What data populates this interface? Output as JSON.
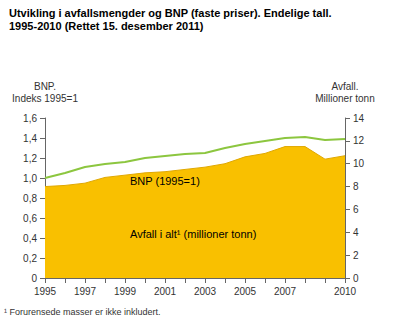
{
  "chart_data": {
    "type": "line",
    "title": "Utvikling i avfallsmengder og BNP (faste priser). Endelige tall.",
    "subtitle": "1995-2010 (Rettet 15. desember 2011)",
    "y_label": "BNP.\nIndeks 1995=1",
    "y2_label": "Avfall.\nMillioner tonn",
    "footnote": "¹ Forurensede masser er ikke inkludert.",
    "categories": [
      "1995",
      null,
      "1997",
      null,
      "1999",
      null,
      "2001",
      null,
      "2003",
      null,
      "2005",
      null,
      "2007",
      null,
      null,
      "2010"
    ],
    "series": [
      {
        "name": "Avfall i alt¹ (millioner tonn)",
        "type": "area",
        "axis": "y2",
        "color": "#f9c000",
        "values": [
          8.0,
          8.1,
          8.3,
          8.8,
          9.0,
          9.2,
          9.3,
          9.5,
          9.7,
          10.0,
          10.6,
          10.9,
          11.5,
          11.5,
          10.4,
          10.7
        ]
      },
      {
        "name": "BNP (1995=1)",
        "type": "line",
        "color": "#8cc63f",
        "values": [
          1.0,
          1.05,
          1.11,
          1.14,
          1.16,
          1.2,
          1.22,
          1.24,
          1.25,
          1.3,
          1.34,
          1.37,
          1.4,
          1.41,
          1.38,
          1.39
        ]
      }
    ],
    "ylim": [
      0,
      1.6
    ],
    "yticks": [
      0,
      {
        "value": 0.2,
        "label": "0,2"
      },
      {
        "value": 0.4,
        "label": "0,4"
      },
      {
        "value": 0.6,
        "label": "0,6"
      },
      {
        "value": 0.8,
        "label": "0,8"
      },
      {
        "value": 1.0,
        "label": "1,0"
      },
      {
        "value": 1.2,
        "label": "1,2"
      },
      {
        "value": 1.4,
        "label": "1,4"
      },
      {
        "value": 1.6,
        "label": "1,6"
      }
    ],
    "y2lim": [
      0,
      14
    ],
    "y2ticks": [
      0,
      2,
      4,
      6,
      8,
      10,
      12,
      14
    ],
    "grid": false
  }
}
